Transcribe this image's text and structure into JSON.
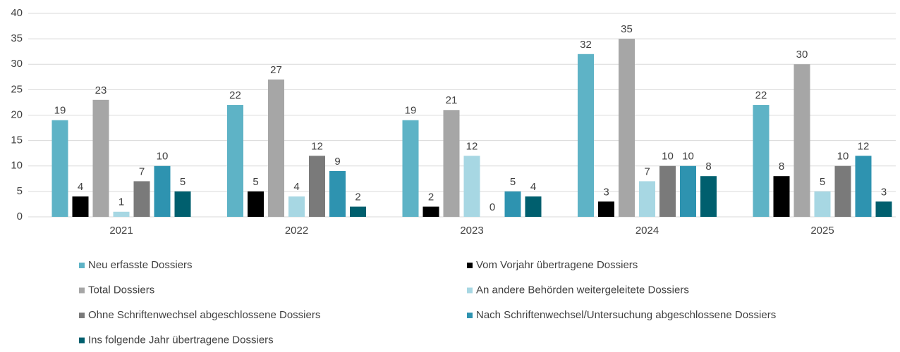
{
  "chart_data": {
    "type": "bar",
    "categories": [
      "2021",
      "2022",
      "2023",
      "2024",
      "2025"
    ],
    "series": [
      {
        "name": "Neu erfasste Dossiers",
        "color": "#5eb3c6",
        "values": [
          19,
          22,
          19,
          32,
          22
        ]
      },
      {
        "name": "Vom Vorjahr übertragene Dossiers",
        "color": "#000000",
        "values": [
          4,
          5,
          2,
          3,
          8
        ]
      },
      {
        "name": "Total Dossiers",
        "color": "#a6a6a6",
        "values": [
          23,
          27,
          21,
          35,
          30
        ]
      },
      {
        "name": "An andere Behörden weitergeleitete Dossiers",
        "color": "#a7d7e3",
        "values": [
          1,
          4,
          12,
          7,
          5
        ]
      },
      {
        "name": "Ohne Schriftenwechsel  abgeschlossene Dossiers",
        "color": "#7a7a7a",
        "values": [
          7,
          12,
          0,
          10,
          10
        ]
      },
      {
        "name": "Nach Schriftenwechsel/Untersuchung abgeschlossene Dossiers",
        "color": "#2e93b0",
        "values": [
          10,
          9,
          5,
          10,
          12
        ]
      },
      {
        "name": "Ins folgende Jahr übertragene Dossiers",
        "color": "#005f6e",
        "values": [
          5,
          2,
          4,
          8,
          3
        ]
      }
    ],
    "ylim": [
      0,
      40
    ],
    "yticks": [
      0,
      5,
      10,
      15,
      20,
      25,
      30,
      35,
      40
    ],
    "grid": true,
    "legend": "bottom"
  }
}
